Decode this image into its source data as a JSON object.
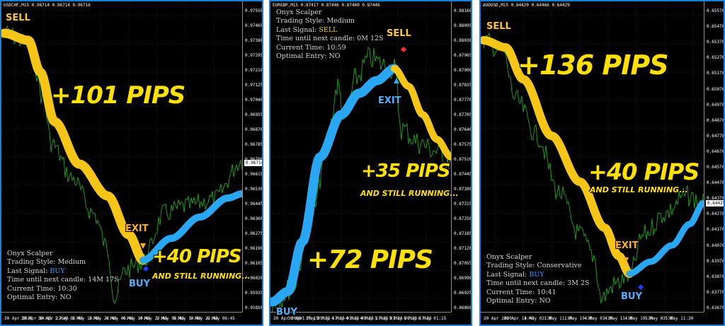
{
  "colors": {
    "buy_line": "#29a7f3",
    "sell_line": "#f5c518",
    "price": "#1a9a1a",
    "frame": "#1a7fd6",
    "grid": "#3a3a3a"
  },
  "panels": [
    {
      "header": "USDCHF,M15  0.96714 0.96714 0.96716",
      "y_ticks": [
        "0.97550",
        "0.97465",
        "0.97380",
        "0.97295",
        "0.97210",
        "0.97125",
        "0.97040",
        "0.96955",
        "0.96870",
        "0.96785",
        "0.96700",
        "0.96615",
        "0.96530",
        "0.96445",
        "0.96360",
        "0.96275",
        "0.96190",
        "0.96105",
        "0.96020",
        "0.95935",
        "0.95850"
      ],
      "x_ticks": [
        "30 Apr 2020",
        "30 Apr 14:45",
        "30 Apr 22:45",
        "1 May 06:45",
        "1 May 14:45",
        "1 May 22:45",
        "4 May 06:45",
        "4 May 14:45",
        "4 May 22:45",
        "5 May 06:45",
        "5 May 14:45",
        "5 May 22:45",
        "6 May 06:45"
      ],
      "price_tag": "0.96714",
      "info": {
        "name": "Onyx Scalper",
        "style": "Trading Style: Medium",
        "signal_label": "Last Signal:",
        "signal_value": "BUY",
        "next_candle": "Time until next candle: 14M 17S",
        "current_time": "Current Time: 10:30",
        "entry": "Optimal Entry: NO"
      },
      "big1": "+101 PIPS",
      "big2": "+40 PIPS",
      "sub": "AND STILL RUNNING...",
      "tags": {
        "sell": "SELL",
        "exit": "EXIT",
        "buy": "BUY"
      }
    },
    {
      "header": "EURGBP,M15  0.87417 0.87446 0.87400 0.87446",
      "y_ticks": [
        "0.88160",
        "0.88095",
        "0.88030",
        "0.87965",
        "0.87900",
        "0.87835",
        "0.87770",
        "0.87705",
        "0.87640",
        "0.87575",
        "0.87510",
        "0.87445",
        "0.87380",
        "0.87315",
        "0.87250",
        "0.87185",
        "0.87120",
        "0.87055",
        "0.86990",
        "0.86925",
        "0.86860"
      ],
      "x_ticks": [
        "30 Apr 2020",
        "30 Apr 17:15",
        "1 May 09:15",
        "1 May 17:15",
        "4 May 01:15",
        "4 May 09:15",
        "4 May 17:15",
        "5 May 01:15",
        "5 May 09:15",
        "5 May 17:15",
        "6 May 01:15"
      ],
      "info": {
        "name": "Onyx Scalper",
        "style": "Trading Style: Medium",
        "signal_label": "Last Signal:",
        "signal_value": "SELL",
        "next_candle": "Time until next candle: 0M 12S",
        "current_time": "Current Time: 10:59",
        "entry": "Optimal Entry: NO"
      },
      "big1": "+72 PIPS",
      "big2": "+35 PIPS",
      "sub": "AND STILL RUNNING...",
      "tags": {
        "sell": "SELL",
        "exit": "EXIT",
        "buy": "BUY"
      }
    },
    {
      "header": "AUDUSD,M15  0.64420 0.64466 0.64429",
      "y_ticks": [
        "0.65570",
        "0.65470",
        "0.65370",
        "0.65270",
        "0.65170",
        "0.65070",
        "0.64970",
        "0.64870",
        "0.64770",
        "0.64670",
        "0.64570",
        "0.64470",
        "0.64370",
        "0.64270",
        "0.64170",
        "0.64070",
        "0.63970",
        "0.63870",
        "0.63770",
        "0.63670"
      ],
      "x_ticks": [
        "30 Apr 2020",
        "30 Apr 14:45",
        "1 May 02:30",
        "1 May 11:30",
        "1 May 19:30",
        "4 May 03:30",
        "4 May 11:30",
        "4 May 19:30",
        "5 May 03:30",
        "5 May 11:30"
      ],
      "price_tag": "0.64429",
      "info": {
        "name": "Onyx Scalper",
        "style": "Trading Style: Conservative",
        "signal_label": "Last Signal:",
        "signal_value": "BUY",
        "next_candle": "Time until next candle: 3M 2S",
        "current_time": "Current Time: 10:41",
        "entry": "Optimal Entry: NO"
      },
      "big1": "+136 PIPS",
      "big2": "+40 PIPS",
      "sub": "AND STILL RUNNING...",
      "tags": {
        "sell": "SELL",
        "exit": "EXIT",
        "buy": "BUY"
      }
    }
  ]
}
